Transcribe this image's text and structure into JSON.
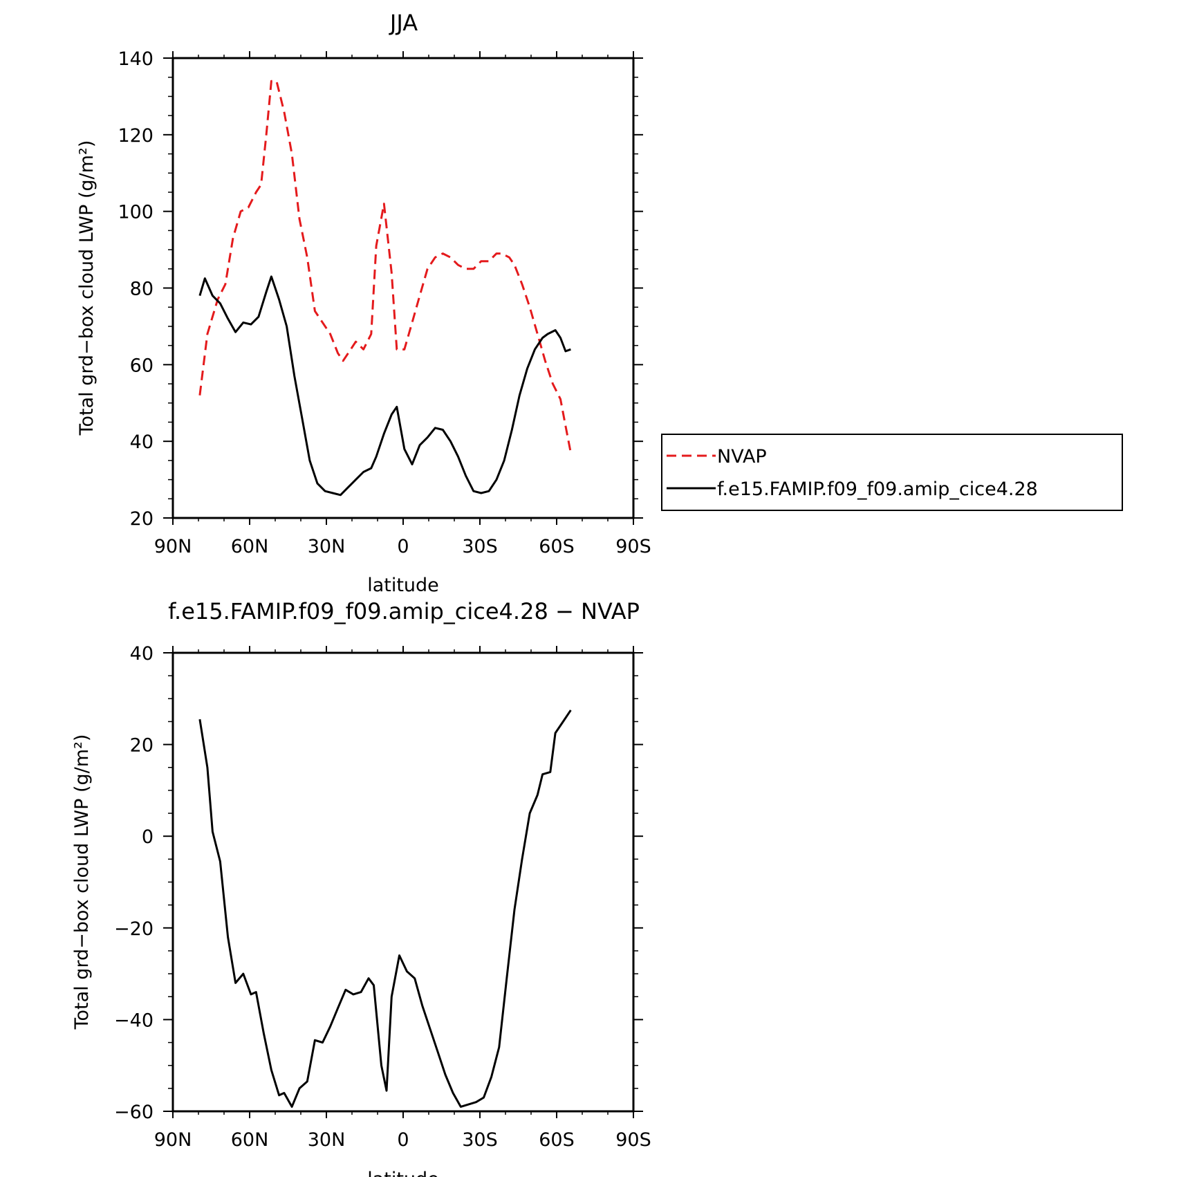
{
  "panels": [
    {
      "title": "JJA",
      "xlabel": "latitude",
      "ylabel": "Total grd−box cloud LWP (g/m²)",
      "xticks": [
        {
          "value": 90,
          "label": "90N"
        },
        {
          "value": 60,
          "label": "60N"
        },
        {
          "value": 30,
          "label": "30N"
        },
        {
          "value": 0,
          "label": "0"
        },
        {
          "value": -30,
          "label": "30S"
        },
        {
          "value": -60,
          "label": "60S"
        },
        {
          "value": -90,
          "label": "90S"
        }
      ],
      "yticks": [
        {
          "value": 20,
          "label": "20"
        },
        {
          "value": 40,
          "label": "40"
        },
        {
          "value": 60,
          "label": "60"
        },
        {
          "value": 80,
          "label": "80"
        },
        {
          "value": 100,
          "label": "100"
        },
        {
          "value": 120,
          "label": "120"
        },
        {
          "value": 140,
          "label": "140"
        }
      ],
      "legend": [
        "NVAP",
        "f.e15.FAMIP.f09_f09.amip_cice4.28"
      ]
    },
    {
      "title": "f.e15.FAMIP.f09_f09.amip_cice4.28 − NVAP",
      "xlabel": "latitude",
      "ylabel": "Total grd−box cloud LWP (g/m²)",
      "xticks": [
        {
          "value": 90,
          "label": "90N"
        },
        {
          "value": 60,
          "label": "60N"
        },
        {
          "value": 30,
          "label": "30N"
        },
        {
          "value": 0,
          "label": "0"
        },
        {
          "value": -30,
          "label": "30S"
        },
        {
          "value": -60,
          "label": "60S"
        },
        {
          "value": -90,
          "label": "90S"
        }
      ],
      "yticks": [
        {
          "value": -60,
          "label": "−60"
        },
        {
          "value": -40,
          "label": "−40"
        },
        {
          "value": -20,
          "label": "−20"
        },
        {
          "value": 0,
          "label": "0"
        },
        {
          "value": 20,
          "label": "20"
        },
        {
          "value": 40,
          "label": "40"
        }
      ]
    }
  ],
  "chart_data": [
    {
      "type": "line",
      "title": "JJA",
      "xlabel": "latitude",
      "ylabel": "Total grd−box cloud LWP (g/m²)",
      "xlim": [
        90,
        -90
      ],
      "ylim": [
        20,
        140
      ],
      "legend_position": "right",
      "series": [
        {
          "name": "NVAP",
          "color": "#e41a1c",
          "style": "dashed",
          "x": [
            79.5,
            76.5,
            72.5,
            69.5,
            66.5,
            63.5,
            60.5,
            57.5,
            55.5,
            53.5,
            51.5,
            49.5,
            46.5,
            43.5,
            40.5,
            37.5,
            34.5,
            31.5,
            28.5,
            25.5,
            23.5,
            20.5,
            18.5,
            15.5,
            12.5,
            10.5,
            7.5,
            4.5,
            2.5,
            -0.5,
            -3.5,
            -6.5,
            -9.5,
            -12.5,
            -15.5,
            -18.5,
            -21.5,
            -24.5,
            -27.5,
            -30.5,
            -33.5,
            -36.5,
            -38.5,
            -41.5,
            -43.5,
            -46.5,
            -49.5,
            -52.5,
            -55.5,
            -58.5,
            -61.5,
            -63.5,
            -65.5
          ],
          "y": [
            52,
            68,
            77,
            81,
            93,
            100,
            101,
            105,
            107,
            120,
            134,
            134,
            126,
            115,
            98,
            88,
            74,
            71,
            68,
            63,
            61,
            64,
            66,
            64,
            68,
            91,
            102,
            84,
            64,
            64,
            71,
            78,
            85,
            88,
            89,
            88,
            86,
            85,
            85,
            87,
            87,
            89,
            89,
            88,
            86,
            81,
            75,
            68,
            61,
            55,
            51,
            44,
            37
          ]
        },
        {
          "name": "f.e15.FAMIP.f09_f09.amip_cice4.28",
          "color": "#000000",
          "style": "solid",
          "x": [
            79.5,
            77.5,
            74.5,
            71.5,
            68.5,
            65.5,
            62.5,
            59.5,
            56.5,
            53.5,
            51.5,
            48.5,
            45.5,
            42.5,
            39.5,
            36.5,
            33.5,
            30.5,
            27.5,
            24.5,
            21.5,
            18.5,
            15.5,
            12.5,
            10.5,
            7.5,
            4.5,
            2.5,
            -0.5,
            -3.5,
            -6.5,
            -9.5,
            -12.5,
            -15.5,
            -18.5,
            -21.5,
            -24.5,
            -27.5,
            -30.5,
            -33.5,
            -36.5,
            -39.5,
            -42.5,
            -45.5,
            -48.5,
            -51.5,
            -54.5,
            -56.5,
            -59.5,
            -61.5,
            -63.5,
            -65.5
          ],
          "y": [
            78,
            82.5,
            78,
            76,
            72,
            68.5,
            71,
            70.5,
            72.5,
            79,
            83,
            77,
            70,
            57,
            46,
            35,
            29,
            27,
            26.5,
            26,
            28,
            30,
            32,
            33,
            36,
            42,
            47,
            49,
            38,
            34,
            39,
            41,
            43.5,
            43,
            40,
            36,
            31,
            27,
            26.5,
            27,
            30,
            35,
            43,
            52,
            59,
            64,
            67,
            68,
            69,
            67,
            63.5,
            64
          ]
        }
      ]
    },
    {
      "type": "line",
      "title": "f.e15.FAMIP.f09_f09.amip_cice4.28 − NVAP",
      "xlabel": "latitude",
      "ylabel": "Total grd−box cloud LWP (g/m²)",
      "xlim": [
        90,
        -90
      ],
      "ylim": [
        -60,
        40
      ],
      "series": [
        {
          "color": "#000000",
          "style": "solid",
          "x": [
            79.5,
            76.5,
            74.5,
            71.5,
            68.5,
            65.5,
            62.5,
            59.5,
            57.5,
            54.5,
            51.5,
            48.5,
            46.5,
            43.5,
            40.5,
            37.5,
            34.5,
            31.5,
            28.5,
            25.5,
            22.5,
            19.5,
            16.5,
            13.5,
            11.5,
            8.5,
            6.5,
            4.5,
            1.5,
            -1.5,
            -4.5,
            -7.5,
            -10.5,
            -13.5,
            -16.5,
            -19.5,
            -22.5,
            -25.5,
            -28.5,
            -31.5,
            -34.5,
            -37.5,
            -40.5,
            -43.5,
            -46.5,
            -49.5,
            -52.5,
            -54.5,
            -57.5,
            -59.5,
            -62.5,
            -65.5
          ],
          "y": [
            25.5,
            15,
            1,
            -5.5,
            -22,
            -32,
            -30,
            -34.5,
            -34,
            -43,
            -51,
            -56.5,
            -56,
            -59,
            -55,
            -53.5,
            -44.5,
            -45,
            -41.5,
            -37.5,
            -33.5,
            -34.5,
            -34,
            -31,
            -32.5,
            -50,
            -55.5,
            -35,
            -26,
            -29.5,
            -31,
            -37,
            -42,
            -47,
            -52,
            -56,
            -59,
            -58.5,
            -58,
            -57,
            -52.5,
            -46,
            -31,
            -16,
            -5,
            5,
            9,
            13.5,
            14,
            22.5,
            25,
            27.5
          ]
        }
      ]
    }
  ]
}
